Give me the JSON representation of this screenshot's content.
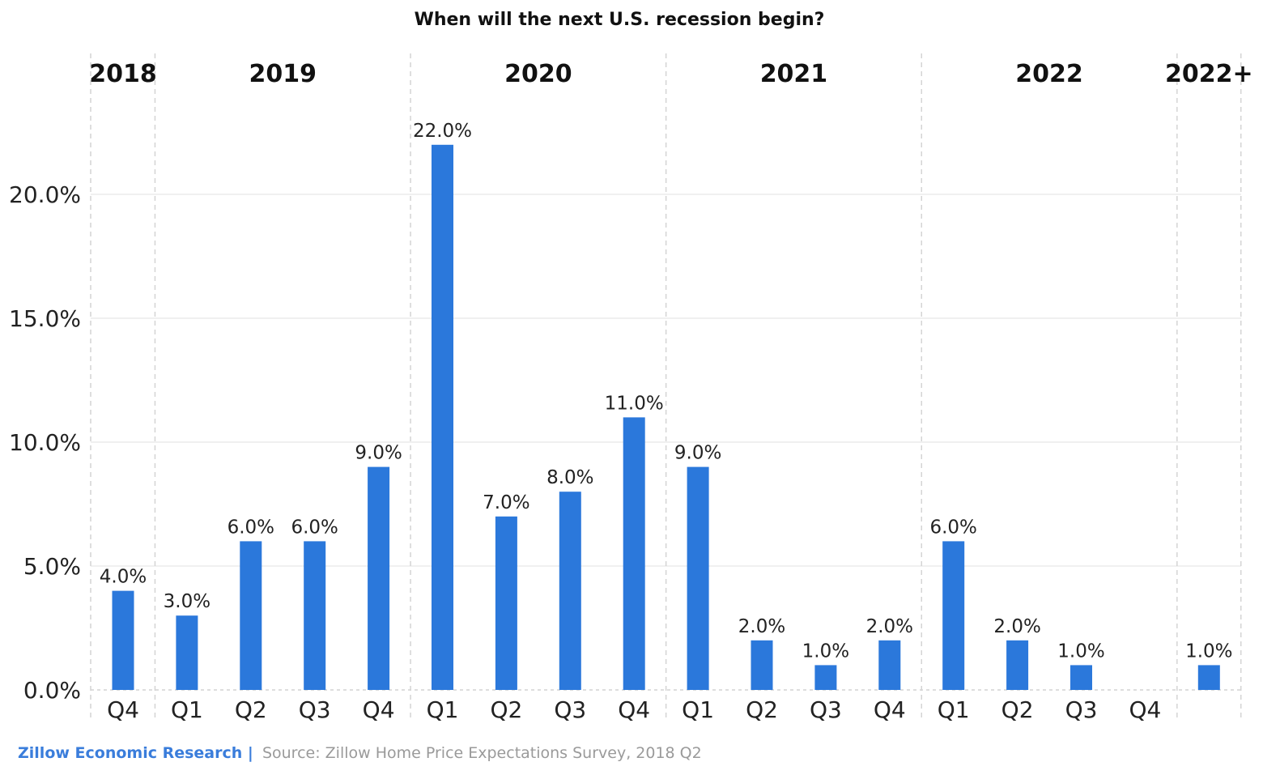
{
  "chart_data": {
    "type": "bar",
    "title": "When will the next U.S. recession begin?",
    "xlabel": "",
    "ylabel": "",
    "ylim": [
      0,
      22
    ],
    "y_ticks": [
      "0.0%",
      "5.0%",
      "10.0%",
      "15.0%",
      "20.0%"
    ],
    "y_tick_values": [
      0,
      5,
      10,
      15,
      20
    ],
    "grid": true,
    "bar_color": "#2B78DB",
    "groups": [
      {
        "year": "2018",
        "categories": [
          "Q4"
        ],
        "values": [
          4.0
        ],
        "labels": [
          "4.0%"
        ]
      },
      {
        "year": "2019",
        "categories": [
          "Q1",
          "Q2",
          "Q3",
          "Q4"
        ],
        "values": [
          3.0,
          6.0,
          6.0,
          9.0
        ],
        "labels": [
          "3.0%",
          "6.0%",
          "6.0%",
          "9.0%"
        ]
      },
      {
        "year": "2020",
        "categories": [
          "Q1",
          "Q2",
          "Q3",
          "Q4"
        ],
        "values": [
          22.0,
          7.0,
          8.0,
          11.0
        ],
        "labels": [
          "22.0%",
          "7.0%",
          "8.0%",
          "11.0%"
        ]
      },
      {
        "year": "2021",
        "categories": [
          "Q1",
          "Q2",
          "Q3",
          "Q4"
        ],
        "values": [
          9.0,
          2.0,
          1.0,
          2.0
        ],
        "labels": [
          "9.0%",
          "2.0%",
          "1.0%",
          "2.0%"
        ]
      },
      {
        "year": "2022",
        "categories": [
          "Q1",
          "Q2",
          "Q3",
          "Q4"
        ],
        "values": [
          6.0,
          2.0,
          1.0,
          null
        ],
        "labels": [
          "6.0%",
          "2.0%",
          "1.0%",
          null
        ]
      },
      {
        "year": "2022+",
        "categories": [
          ""
        ],
        "values": [
          1.0
        ],
        "labels": [
          "1.0%"
        ]
      }
    ]
  },
  "footer": {
    "brand": "Zillow Economic Research |",
    "source": "Source: Zillow Home Price Expectations Survey, 2018 Q2"
  }
}
